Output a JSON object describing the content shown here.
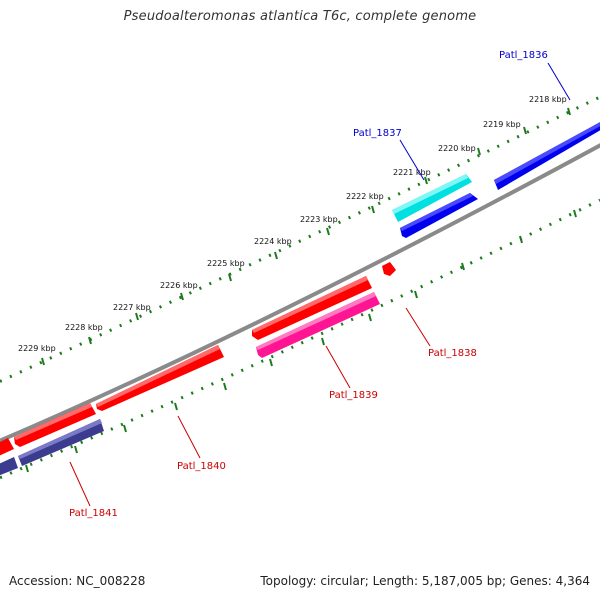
{
  "title": "Pseudoalteromonas atlantica T6c, complete genome",
  "footer": {
    "accession": "Accession: NC_008228",
    "stats": "Topology: circular; Length: 5,187,005 bp; Genes: 4,364"
  },
  "colors": {
    "backbone": "#8a8a8a",
    "ruler_dots": "#1e7a1e",
    "reverse_gene": "#ff0000",
    "forward_gene": "#0000ee",
    "label_forward": "#0000cc",
    "label_reverse": "#cc0000",
    "rna_like": "#00e0e0",
    "pink_gene": "#ff1493",
    "purple_gene": "#3b3b8f"
  },
  "ruler": {
    "ticks": [
      {
        "value": 2218,
        "label": "2218 kbp"
      },
      {
        "value": 2219,
        "label": "2219 kbp"
      },
      {
        "value": 2220,
        "label": "2220 kbp"
      },
      {
        "value": 2221,
        "label": "2221 kbp"
      },
      {
        "value": 2222,
        "label": "2222 kbp"
      },
      {
        "value": 2223,
        "label": "2223 kbp"
      },
      {
        "value": 2224,
        "label": "2224 kbp"
      },
      {
        "value": 2225,
        "label": "2225 kbp"
      },
      {
        "value": 2226,
        "label": "2226 kbp"
      },
      {
        "value": 2227,
        "label": "2227 kbp"
      },
      {
        "value": 2228,
        "label": "2228 kbp"
      },
      {
        "value": 2229,
        "label": "2229 kbp"
      }
    ]
  },
  "genes": [
    {
      "name": "Patl_1836",
      "strand": "+",
      "color": "#0000ee",
      "label_color": "#0000cc"
    },
    {
      "name": "Patl_1837",
      "strand": "+",
      "color": "#00e0e0",
      "label_color": "#0000cc"
    },
    {
      "name": "Patl_1838",
      "strand": "-",
      "color": "#ff0000",
      "label_color": "#cc0000"
    },
    {
      "name": "Patl_1839",
      "strand": "-",
      "color": "#ff1493",
      "label_color": "#cc0000"
    },
    {
      "name": "Patl_1840",
      "strand": "-",
      "color": "#ff0000",
      "label_color": "#cc0000"
    },
    {
      "name": "Patl_1841",
      "strand": "-",
      "color": "#3b3b8f",
      "label_color": "#cc0000"
    }
  ]
}
